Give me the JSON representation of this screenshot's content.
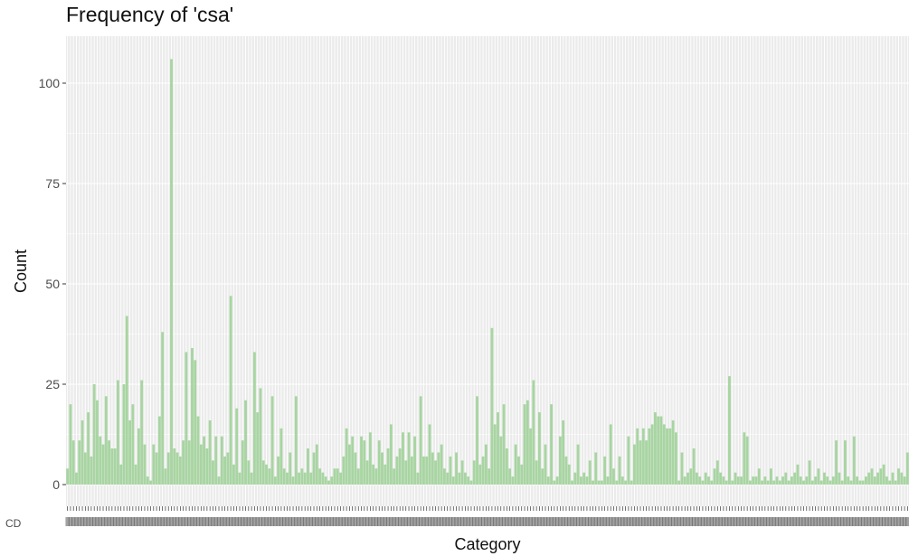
{
  "chart_data": {
    "type": "bar",
    "title": "Frequency of 'csa'",
    "xlabel": "Category",
    "ylabel": "Count",
    "ylim": [
      0,
      110
    ],
    "yticks": [
      0,
      25,
      50,
      75,
      100
    ],
    "grid": true,
    "bar_color": "#a8d5a2",
    "panel_bg": "#ebebeb",
    "grid_color": "#ffffff",
    "first_category_label": "CD",
    "values": [
      4,
      20,
      11,
      3,
      11,
      16,
      8,
      18,
      7,
      25,
      21,
      12,
      10,
      22,
      11,
      9,
      9,
      26,
      5,
      25,
      42,
      16,
      20,
      5,
      14,
      26,
      10,
      2,
      1,
      10,
      8,
      17,
      38,
      4,
      8,
      106,
      9,
      8,
      7,
      11,
      33,
      11,
      34,
      31,
      17,
      10,
      12,
      9,
      16,
      6,
      12,
      2,
      12,
      7,
      8,
      47,
      5,
      19,
      3,
      11,
      21,
      6,
      3,
      33,
      18,
      24,
      6,
      5,
      4,
      22,
      2,
      7,
      14,
      4,
      3,
      8,
      2,
      22,
      3,
      4,
      3,
      9,
      3,
      8,
      10,
      4,
      3,
      2,
      1,
      2,
      4,
      4,
      3,
      7,
      14,
      10,
      12,
      8,
      4,
      12,
      11,
      6,
      13,
      5,
      4,
      11,
      8,
      5,
      9,
      15,
      4,
      7,
      9,
      13,
      6,
      13,
      7,
      12,
      3,
      22,
      7,
      7,
      15,
      8,
      6,
      8,
      10,
      4,
      3,
      7,
      2,
      8,
      3,
      6,
      3,
      2,
      1,
      6,
      22,
      5,
      7,
      10,
      4,
      39,
      15,
      18,
      12,
      20,
      9,
      4,
      2,
      10,
      7,
      5,
      20,
      21,
      14,
      26,
      6,
      18,
      4,
      10,
      2,
      20,
      1,
      2,
      12,
      16,
      7,
      5,
      1,
      3,
      10,
      2,
      3,
      2,
      6,
      1,
      8,
      1,
      1,
      7,
      2,
      15,
      4,
      1,
      7,
      2,
      1,
      12,
      1,
      10,
      14,
      11,
      14,
      11,
      14,
      15,
      18,
      17,
      17,
      15,
      14,
      14,
      16,
      13,
      1,
      8,
      2,
      3,
      4,
      9,
      3,
      2,
      1,
      3,
      2,
      1,
      4,
      6,
      3,
      2,
      1,
      27,
      1,
      3,
      2,
      2,
      13,
      12,
      1,
      2,
      2,
      4,
      1,
      2,
      1,
      4,
      1,
      2,
      1,
      2,
      3,
      1,
      2,
      3,
      5,
      2,
      1,
      2,
      6,
      1,
      2,
      4,
      1,
      3,
      2,
      1,
      2,
      11,
      3,
      1,
      11,
      2,
      1,
      12,
      2,
      1,
      1,
      2,
      3,
      4,
      2,
      3,
      4,
      5,
      2,
      1,
      3,
      1,
      4,
      3,
      2,
      8
    ]
  }
}
